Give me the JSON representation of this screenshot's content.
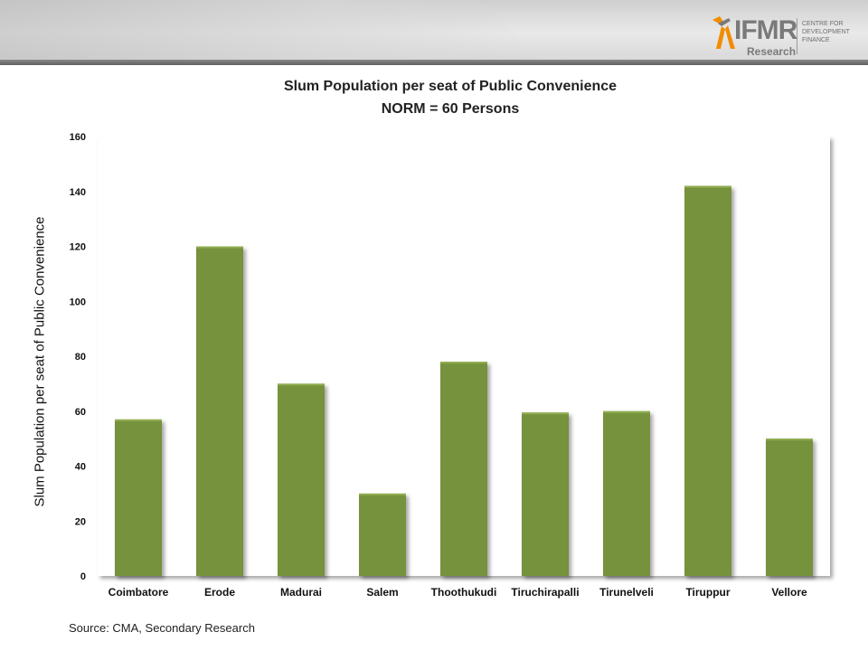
{
  "branding": {
    "logo_text": "IFMR",
    "logo_sub": "Research",
    "tagline": "CENTRE FOR\nDEVELOPMENT\nFINANCE"
  },
  "source_note": "Source: CMA, Secondary Research",
  "colors": {
    "bar": "#76923c",
    "bar_highlight": "#8fad4f",
    "plot_bg": "#ffffff",
    "logo_accent": "#f28c00"
  },
  "chart_data": {
    "type": "bar",
    "title": "Slum Population per seat of Public Convenience",
    "subtitle": "NORM = 60 Persons",
    "xlabel": "",
    "ylabel": "Slum Population per seat of Public Convenience",
    "categories": [
      "Coimbatore",
      "Erode",
      "Madurai",
      "Salem",
      "Thoothukudi",
      "Tiruchirapalli",
      "Tirunelveli",
      "Tiruppur",
      "Vellore"
    ],
    "values": [
      57,
      120,
      70,
      30,
      78,
      59.5,
      60,
      142,
      50
    ],
    "ylim": [
      0,
      160
    ],
    "yticks": [
      "0",
      "20",
      "40",
      "60",
      "80",
      "100",
      "120",
      "140",
      "160"
    ],
    "grid": false,
    "legend": "none"
  }
}
